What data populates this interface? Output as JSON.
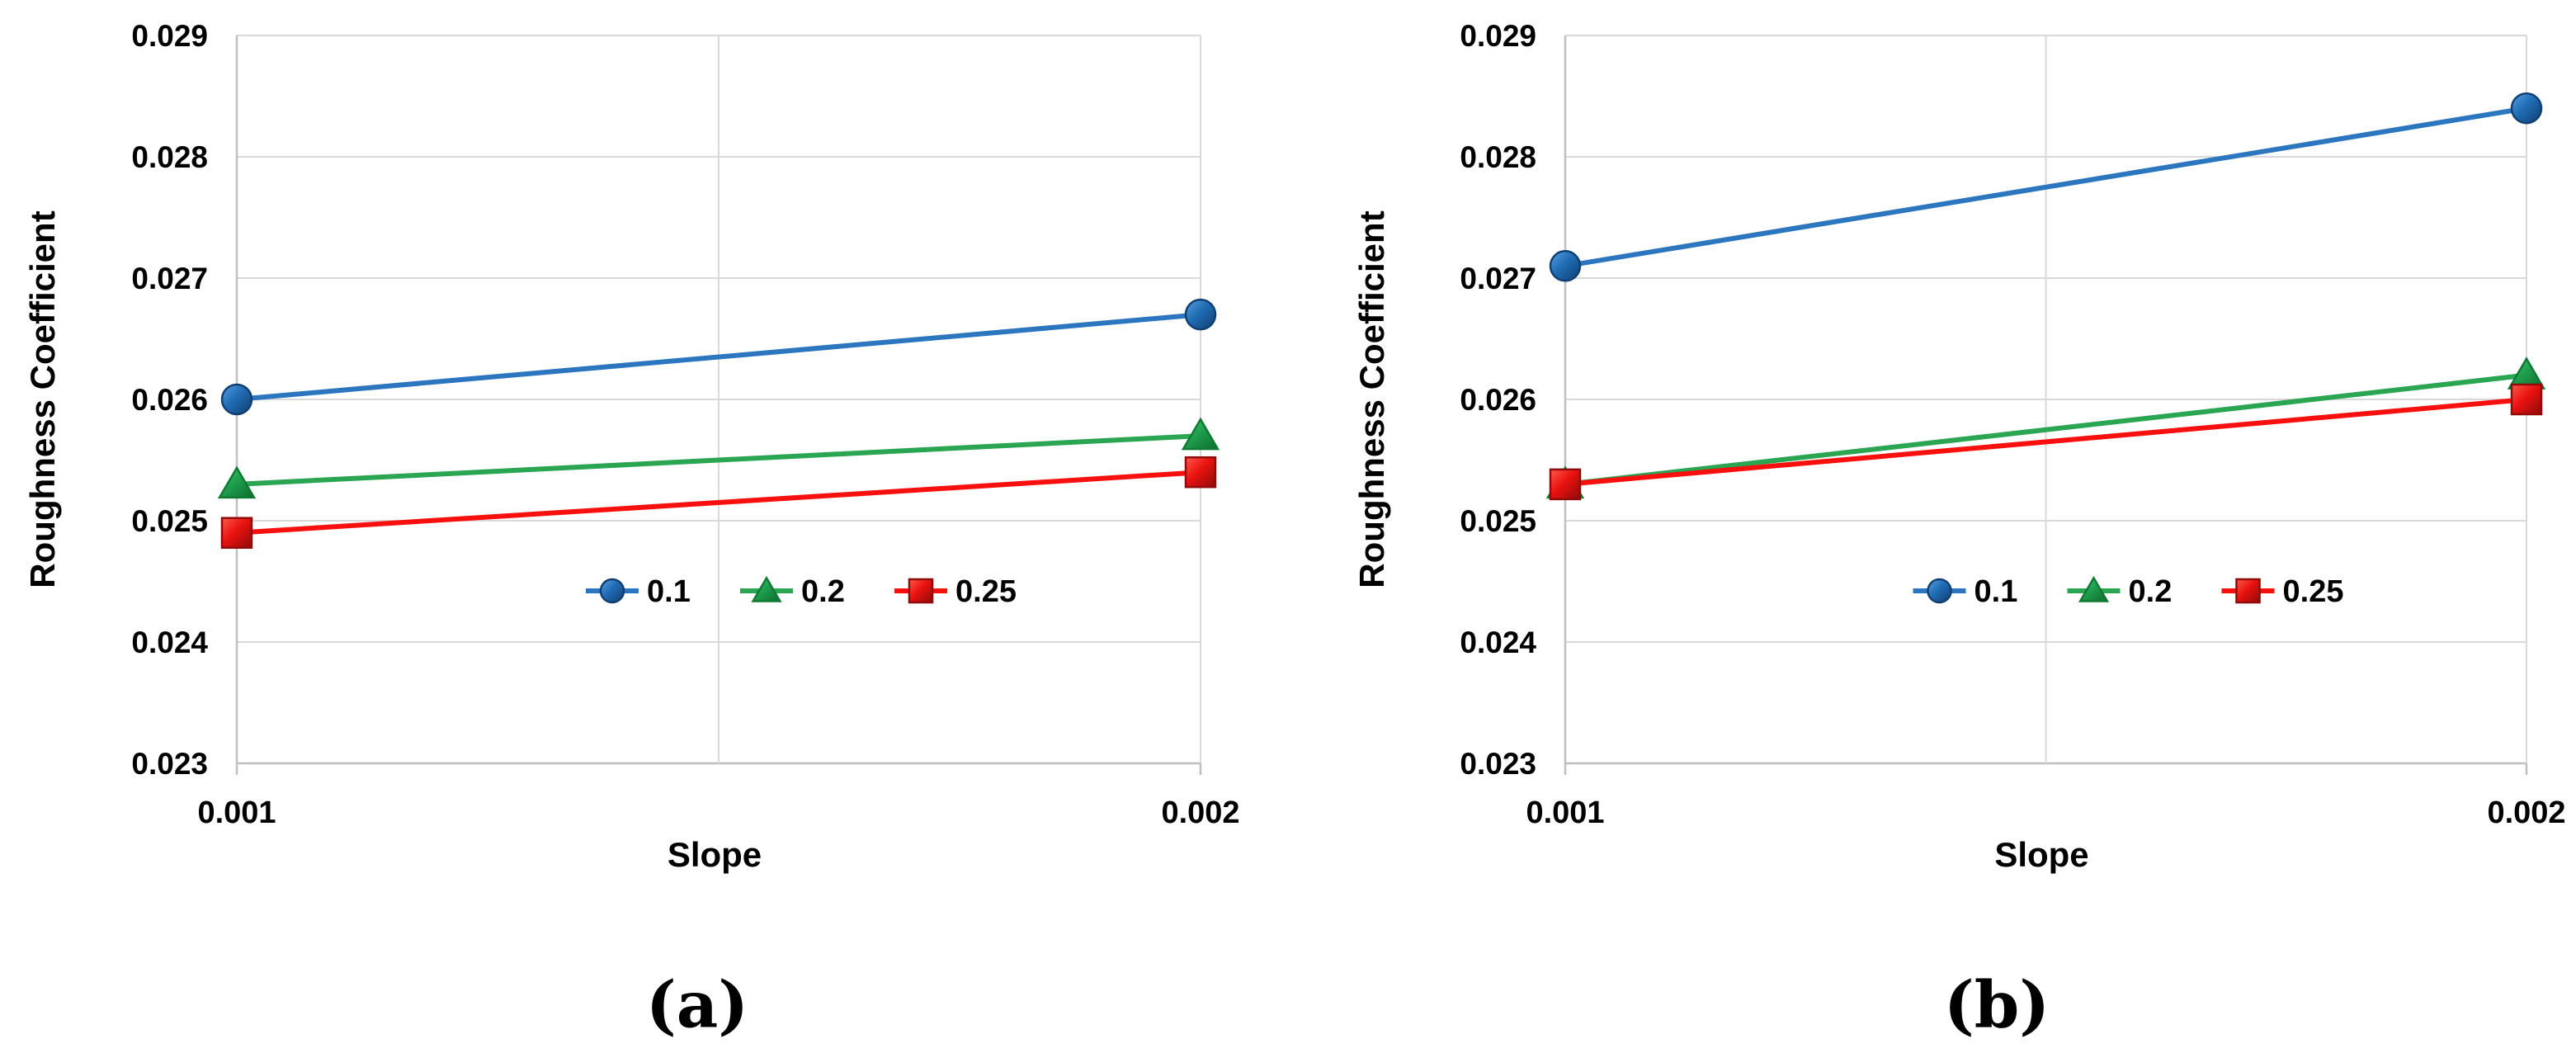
{
  "figure": {
    "background": "#ffffff",
    "panel_labels": [
      "(a)",
      "(b)"
    ]
  },
  "style": {
    "grid_color": "#D9D9D9",
    "axis_color": "#BFBFBF",
    "text_color": "#000000",
    "series_colors": {
      "0.1": {
        "line": "#2B76BE",
        "fill_light": "#5AA0DE",
        "fill_mid": "#1F6CB4",
        "fill_dark": "#123E6F",
        "edge": "#123F73"
      },
      "0.2": {
        "line": "#2AA551",
        "fill_light": "#4CC277",
        "fill_mid": "#1F9F4D",
        "fill_dark": "#0E6B2D",
        "edge": "#0E7A33"
      },
      "0.25": {
        "line": "#F8100E",
        "fill_light": "#FF5A4D",
        "fill_mid": "#E91210",
        "fill_dark": "#8F0B08",
        "edge": "#900B09"
      }
    }
  },
  "chart_data": [
    {
      "type": "line",
      "panel_label": "(a)",
      "title": "",
      "xlabel": "Slope",
      "ylabel": "Roughness Coefficient",
      "x": [
        0.001,
        0.002
      ],
      "x_tick_labels": [
        "0.001",
        "0.002"
      ],
      "ylim": [
        0.023,
        0.029
      ],
      "y_tick_labels": [
        "0.023",
        "0.024",
        "0.025",
        "0.026",
        "0.027",
        "0.028",
        "0.029"
      ],
      "grid": true,
      "legend_position": "inside-center",
      "series": [
        {
          "name": "0.1",
          "marker": "circle",
          "values": [
            0.026,
            0.0267
          ]
        },
        {
          "name": "0.2",
          "marker": "triangle",
          "values": [
            0.0253,
            0.0257
          ]
        },
        {
          "name": "0.25",
          "marker": "square",
          "values": [
            0.0249,
            0.0254
          ]
        }
      ]
    },
    {
      "type": "line",
      "panel_label": "(b)",
      "title": "",
      "xlabel": "Slope",
      "ylabel": "Roughness Coefficient",
      "x": [
        0.001,
        0.002
      ],
      "x_tick_labels": [
        "0.001",
        "0.002"
      ],
      "ylim": [
        0.023,
        0.029
      ],
      "y_tick_labels": [
        "0.023",
        "0.024",
        "0.025",
        "0.026",
        "0.027",
        "0.028",
        "0.029"
      ],
      "grid": true,
      "legend_position": "inside-center",
      "series": [
        {
          "name": "0.1",
          "marker": "circle",
          "values": [
            0.0271,
            0.0284
          ]
        },
        {
          "name": "0.2",
          "marker": "triangle",
          "values": [
            0.0253,
            0.0262
          ]
        },
        {
          "name": "0.25",
          "marker": "square",
          "values": [
            0.0253,
            0.026
          ]
        }
      ]
    }
  ]
}
